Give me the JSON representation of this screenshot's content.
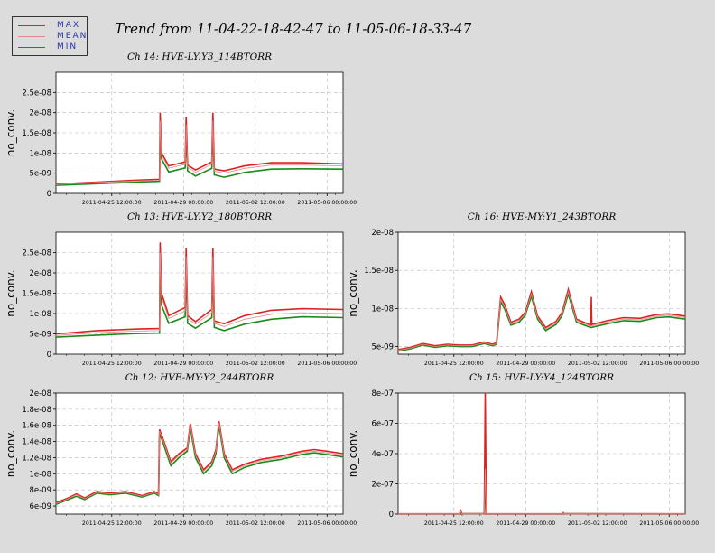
{
  "header": {
    "title": "Trend from 11-04-22-18-42-47 to 11-05-06-18-33-47"
  },
  "legend": {
    "items": [
      {
        "label": "MAX",
        "color": "#dd2222"
      },
      {
        "label": "MEAN",
        "color": "#e58a8a"
      },
      {
        "label": "MIN",
        "color": "#1a8a1a"
      }
    ]
  },
  "chart_data": [
    {
      "type": "line",
      "title": "Ch 14: HVE-LY:Y3_114BTORR",
      "ylabel": "no_conv.",
      "xlim": [
        "2011-04-22 18:42:47",
        "2011-05-06 18:33:47"
      ],
      "ylim": [
        0,
        3e-08
      ],
      "yticks": [
        0,
        5e-09,
        1e-08,
        1.5e-08,
        2e-08,
        2.5e-08
      ],
      "ytick_labels": [
        "0",
        "5e-09",
        "1e-08",
        "1.5e-08",
        "2e-08",
        "2.5e-08"
      ],
      "xtick_labels": [
        "2011-04-25 12:00:00",
        "2011-04-29 00:00:00",
        "2011-05-02 12:00:00",
        "2011-05-06 00:00:00"
      ],
      "grid": true,
      "series": [
        {
          "name": "MAX",
          "x": [
            0,
            2,
            4,
            5.05,
            5.08,
            5.15,
            5.5,
            6.3,
            6.35,
            6.42,
            6.8,
            7.6,
            7.65,
            7.72,
            8.2,
            9.2,
            10.5,
            12,
            14
          ],
          "y": [
            2.3e-09,
            2.8e-09,
            3.3e-09,
            3.5e-09,
            2e-08,
            1e-08,
            6.8e-09,
            7.8e-09,
            1.9e-08,
            7e-09,
            5.8e-09,
            7.8e-09,
            2e-08,
            6e-09,
            5.6e-09,
            6.8e-09,
            7.6e-09,
            7.6e-09,
            7.3e-09
          ]
        },
        {
          "name": "MEAN",
          "x": [
            0,
            2,
            4,
            5.05,
            5.08,
            5.15,
            5.5,
            6.3,
            6.35,
            6.42,
            6.8,
            7.6,
            7.65,
            7.72,
            8.2,
            9.2,
            10.5,
            12,
            14
          ],
          "y": [
            2.2e-09,
            2.7e-09,
            3.1e-09,
            3.3e-09,
            1.8e-08,
            9.5e-09,
            6.2e-09,
            7.2e-09,
            1.7e-08,
            6.5e-09,
            5.2e-09,
            7.2e-09,
            1.8e-08,
            5.5e-09,
            5e-09,
            6.2e-09,
            7e-09,
            7e-09,
            6.8e-09
          ]
        },
        {
          "name": "MIN",
          "x": [
            0,
            2,
            4,
            5.05,
            5.08,
            5.15,
            5.5,
            6.3,
            6.35,
            6.42,
            6.8,
            7.6,
            7.65,
            7.72,
            8.2,
            9.2,
            10.5,
            12,
            14
          ],
          "y": [
            2e-09,
            2.4e-09,
            2.8e-09,
            3e-09,
            1.6e-08,
            8.5e-09,
            5.3e-09,
            6.3e-09,
            1.5e-08,
            5.6e-09,
            4.3e-09,
            6.2e-09,
            1.6e-08,
            4.6e-09,
            4e-09,
            5.2e-09,
            6e-09,
            6.1e-09,
            6e-09
          ]
        }
      ]
    },
    {
      "type": "line",
      "title": "Ch 13: HVE-LY:Y2_180BTORR",
      "ylabel": "no_conv.",
      "xlim": [
        "2011-04-22 18:42:47",
        "2011-05-06 18:33:47"
      ],
      "ylim": [
        0,
        3e-08
      ],
      "yticks": [
        0,
        5e-09,
        1e-08,
        1.5e-08,
        2e-08,
        2.5e-08
      ],
      "ytick_labels": [
        "0",
        "5e-09",
        "1e-08",
        "1.5e-08",
        "2e-08",
        "2.5e-08"
      ],
      "xtick_labels": [
        "2011-04-25 12:00:00",
        "2011-04-29 00:00:00",
        "2011-05-02 12:00:00",
        "2011-05-06 00:00:00"
      ],
      "grid": true,
      "series": [
        {
          "name": "MAX",
          "x": [
            0,
            2,
            4,
            5.05,
            5.08,
            5.15,
            5.5,
            6.3,
            6.35,
            6.42,
            6.8,
            7.6,
            7.65,
            7.72,
            8.2,
            9.2,
            10.5,
            12,
            14
          ],
          "y": [
            5e-09,
            5.8e-09,
            6.2e-09,
            6.3e-09,
            2.75e-08,
            1.5e-08,
            9.5e-09,
            1.15e-08,
            2.6e-08,
            9.5e-09,
            8e-09,
            1.1e-08,
            2.6e-08,
            8.2e-09,
            7.5e-09,
            9.5e-09,
            1.08e-08,
            1.12e-08,
            1.1e-08
          ]
        },
        {
          "name": "MEAN",
          "x": [
            0,
            2,
            4,
            5.05,
            5.08,
            5.15,
            5.5,
            6.3,
            6.35,
            6.42,
            6.8,
            7.6,
            7.65,
            7.72,
            8.2,
            9.2,
            10.5,
            12,
            14
          ],
          "y": [
            4.6e-09,
            5.3e-09,
            5.7e-09,
            5.8e-09,
            2.5e-08,
            1.4e-08,
            8.8e-09,
            1.06e-08,
            2.4e-08,
            8.8e-09,
            7.4e-09,
            1.02e-08,
            2.4e-08,
            7.6e-09,
            6.8e-09,
            8.6e-09,
            9.8e-09,
            1.02e-08,
            1e-08
          ]
        },
        {
          "name": "MIN",
          "x": [
            0,
            2,
            4,
            5.05,
            5.08,
            5.15,
            5.5,
            6.3,
            6.35,
            6.42,
            6.8,
            7.6,
            7.65,
            7.72,
            8.2,
            9.2,
            10.5,
            12,
            14
          ],
          "y": [
            4.2e-09,
            4.7e-09,
            5.1e-09,
            5.2e-09,
            2.2e-08,
            1.2e-08,
            7.6e-09,
            9.2e-09,
            2.1e-08,
            7.6e-09,
            6.4e-09,
            9e-09,
            2.1e-08,
            6.6e-09,
            5.8e-09,
            7.4e-09,
            8.6e-09,
            9.2e-09,
            9e-09
          ]
        }
      ]
    },
    {
      "type": "line",
      "title": "Ch 12: HVE-MY:Y2_244BTORR",
      "ylabel": "no_conv.",
      "xlim": [
        "2011-04-22 18:42:47",
        "2011-05-06 18:33:47"
      ],
      "ylim": [
        5e-09,
        2e-08
      ],
      "yticks": [
        6e-09,
        8e-09,
        1e-08,
        1.2e-08,
        1.4e-08,
        1.6e-08,
        1.8e-08,
        2e-08
      ],
      "ytick_labels": [
        "6e-09",
        "8e-09",
        "1e-08",
        "1.2e-08",
        "1.4e-08",
        "1.6e-08",
        "1.8e-08",
        "2e-08"
      ],
      "xtick_labels": [
        "2011-04-25 12:00:00",
        "2011-04-29 00:00:00",
        "2011-05-02 12:00:00",
        "2011-05-06 00:00:00"
      ],
      "grid": true,
      "series": [
        {
          "name": "MAX",
          "x": [
            0,
            0.6,
            1.0,
            1.4,
            2.0,
            2.6,
            3.4,
            4.2,
            4.8,
            5.0,
            5.05,
            5.2,
            5.6,
            6.0,
            6.4,
            6.55,
            6.8,
            7.2,
            7.6,
            7.8,
            7.95,
            8.2,
            8.6,
            9.2,
            10.0,
            11.0,
            12.0,
            12.6,
            13.2,
            14
          ],
          "y": [
            6.4e-09,
            7e-09,
            7.5e-09,
            7e-09,
            7.8e-09,
            7.6e-09,
            7.8e-09,
            7.3e-09,
            7.8e-09,
            7.5e-09,
            1.55e-08,
            1.45e-08,
            1.15e-08,
            1.25e-08,
            1.32e-08,
            1.62e-08,
            1.25e-08,
            1.05e-08,
            1.15e-08,
            1.3e-08,
            1.65e-08,
            1.25e-08,
            1.05e-08,
            1.12e-08,
            1.18e-08,
            1.22e-08,
            1.28e-08,
            1.3e-08,
            1.28e-08,
            1.25e-08
          ]
        },
        {
          "name": "MEAN",
          "x": [
            0,
            0.6,
            1.0,
            1.4,
            2.0,
            2.6,
            3.4,
            4.2,
            4.8,
            5.0,
            5.05,
            5.2,
            5.6,
            6.0,
            6.4,
            6.55,
            6.8,
            7.2,
            7.6,
            7.8,
            7.95,
            8.2,
            8.6,
            9.2,
            10.0,
            11.0,
            12.0,
            12.6,
            13.2,
            14
          ],
          "y": [
            6.3e-09,
            6.9e-09,
            7.4e-09,
            6.9e-09,
            7.7e-09,
            7.5e-09,
            7.7e-09,
            7.2e-09,
            7.7e-09,
            7.4e-09,
            1.53e-08,
            1.43e-08,
            1.13e-08,
            1.23e-08,
            1.3e-08,
            1.6e-08,
            1.23e-08,
            1.03e-08,
            1.13e-08,
            1.28e-08,
            1.63e-08,
            1.23e-08,
            1.03e-08,
            1.1e-08,
            1.16e-08,
            1.2e-08,
            1.26e-08,
            1.28e-08,
            1.26e-08,
            1.23e-08
          ]
        },
        {
          "name": "MIN",
          "x": [
            0,
            0.6,
            1.0,
            1.4,
            2.0,
            2.6,
            3.4,
            4.2,
            4.8,
            5.0,
            5.05,
            5.2,
            5.6,
            6.0,
            6.4,
            6.55,
            6.8,
            7.2,
            7.6,
            7.8,
            7.95,
            8.2,
            8.6,
            9.2,
            10.0,
            11.0,
            12.0,
            12.6,
            13.2,
            14
          ],
          "y": [
            6.2e-09,
            6.8e-09,
            7.2e-09,
            6.8e-09,
            7.6e-09,
            7.4e-09,
            7.6e-09,
            7.1e-09,
            7.6e-09,
            7.3e-09,
            1.5e-08,
            1.4e-08,
            1.1e-08,
            1.2e-08,
            1.28e-08,
            1.57e-08,
            1.2e-08,
            1e-08,
            1.1e-08,
            1.25e-08,
            1.6e-08,
            1.2e-08,
            1e-08,
            1.08e-08,
            1.14e-08,
            1.18e-08,
            1.24e-08,
            1.26e-08,
            1.24e-08,
            1.21e-08
          ]
        }
      ]
    },
    {
      "type": "line",
      "title": "Ch 16: HVE-MY:Y1_243BTORR",
      "ylabel": "no_conv.",
      "xlim": [
        "2011-04-22 18:42:47",
        "2011-05-06 18:33:47"
      ],
      "ylim": [
        4e-09,
        2e-08
      ],
      "yticks": [
        5e-09,
        1e-08,
        1.5e-08,
        2e-08
      ],
      "ytick_labels": [
        "5e-09",
        "1e-08",
        "1.5e-08",
        "2e-08"
      ],
      "xtick_labels": [
        "2011-04-25 12:00:00",
        "2011-04-29 00:00:00",
        "2011-05-02 12:00:00",
        "2011-05-06 00:00:00"
      ],
      "grid": true,
      "series": [
        {
          "name": "MAX",
          "x": [
            0,
            0.6,
            1.2,
            1.8,
            2.4,
            3.0,
            3.6,
            4.2,
            4.6,
            4.8,
            5.0,
            5.2,
            5.5,
            5.9,
            6.2,
            6.5,
            6.8,
            7.2,
            7.7,
            8.0,
            8.3,
            8.7,
            9.4,
            9.42,
            9.45,
            10.2,
            11.0,
            11.8,
            12.6,
            13.2,
            14
          ],
          "y": [
            4.6e-09,
            4.9e-09,
            5.4e-09,
            5.1e-09,
            5.3e-09,
            5.2e-09,
            5.2e-09,
            5.6e-09,
            5.3e-09,
            5.5e-09,
            1.15e-08,
            1.05e-08,
            8.2e-09,
            8.6e-09,
            9.5e-09,
            1.22e-08,
            9e-09,
            7.5e-09,
            8.3e-09,
            9.5e-09,
            1.25e-08,
            8.6e-09,
            7.8e-09,
            1.15e-08,
            7.9e-09,
            8.4e-09,
            8.8e-09,
            8.7e-09,
            9.2e-09,
            9.3e-09,
            9e-09
          ]
        },
        {
          "name": "MEAN",
          "x": [
            0,
            0.6,
            1.2,
            1.8,
            2.4,
            3.0,
            3.6,
            4.2,
            4.6,
            4.8,
            5.0,
            5.2,
            5.5,
            5.9,
            6.2,
            6.5,
            6.8,
            7.2,
            7.7,
            8.0,
            8.3,
            8.7,
            9.4,
            10.2,
            11.0,
            11.8,
            12.6,
            13.2,
            14
          ],
          "y": [
            4.5e-09,
            4.8e-09,
            5.3e-09,
            5e-09,
            5.2e-09,
            5.1e-09,
            5.1e-09,
            5.5e-09,
            5.2e-09,
            5.4e-09,
            1.12e-08,
            1.02e-08,
            8e-09,
            8.4e-09,
            9.3e-09,
            1.19e-08,
            8.8e-09,
            7.3e-09,
            8.1e-09,
            9.3e-09,
            1.22e-08,
            8.4e-09,
            7.7e-09,
            8.2e-09,
            8.6e-09,
            8.5e-09,
            9e-09,
            9.1e-09,
            8.8e-09
          ]
        },
        {
          "name": "MIN",
          "x": [
            0,
            0.6,
            1.2,
            1.8,
            2.4,
            3.0,
            3.6,
            4.2,
            4.6,
            4.8,
            5.0,
            5.2,
            5.5,
            5.9,
            6.2,
            6.5,
            6.8,
            7.2,
            7.7,
            8.0,
            8.3,
            8.7,
            9.4,
            10.2,
            11.0,
            11.8,
            12.6,
            13.2,
            14
          ],
          "y": [
            4.4e-09,
            4.7e-09,
            5.2e-09,
            4.9e-09,
            5.1e-09,
            5e-09,
            5e-09,
            5.4e-09,
            5.1e-09,
            5.3e-09,
            1.09e-08,
            9.9e-09,
            7.8e-09,
            8.2e-09,
            9.1e-09,
            1.16e-08,
            8.6e-09,
            7.1e-09,
            7.9e-09,
            9.1e-09,
            1.19e-08,
            8.2e-09,
            7.5e-09,
            8e-09,
            8.4e-09,
            8.3e-09,
            8.8e-09,
            8.9e-09,
            8.6e-09
          ]
        }
      ]
    },
    {
      "type": "line",
      "title": "Ch 15: HVE-LY:Y4_124BTORR",
      "ylabel": "no_conv.",
      "xlim": [
        "2011-04-22 18:42:47",
        "2011-05-06 18:33:47"
      ],
      "ylim": [
        0,
        8e-07
      ],
      "yticks": [
        0,
        2e-07,
        4e-07,
        6e-07,
        8e-07
      ],
      "ytick_labels": [
        "0",
        "2e-07",
        "4e-07",
        "6e-07",
        "8e-07"
      ],
      "xtick_labels": [
        "2011-04-25 12:00:00",
        "2011-04-29 00:00:00",
        "2011-05-02 12:00:00",
        "2011-05-06 00:00:00"
      ],
      "grid": true,
      "series": [
        {
          "name": "MAX",
          "x": [
            0,
            3.0,
            3.05,
            3.1,
            4.2,
            4.25,
            4.3,
            8.0,
            8.05,
            8.1,
            14
          ],
          "y": [
            2e-09,
            2e-09,
            3e-08,
            3e-09,
            3e-09,
            8e-07,
            2e-09,
            2e-09,
            1e-08,
            3e-09,
            2e-09
          ]
        },
        {
          "name": "MEAN",
          "x": [
            0,
            3.0,
            3.05,
            3.1,
            4.2,
            4.25,
            4.3,
            8.0,
            8.05,
            8.1,
            14
          ],
          "y": [
            1.5e-09,
            1.5e-09,
            2e-08,
            2e-09,
            2e-09,
            3e-07,
            1.5e-09,
            1.5e-09,
            8e-09,
            2e-09,
            1.5e-09
          ]
        },
        {
          "name": "MIN",
          "x": [
            0,
            3.0,
            3.05,
            3.1,
            4.2,
            4.25,
            4.3,
            8.0,
            8.05,
            8.1,
            14
          ],
          "y": [
            1e-09,
            1e-09,
            1.5e-08,
            1.5e-09,
            1.5e-09,
            2.5e-07,
            1e-09,
            1e-09,
            6e-09,
            1.5e-09,
            1e-09
          ]
        }
      ]
    }
  ]
}
